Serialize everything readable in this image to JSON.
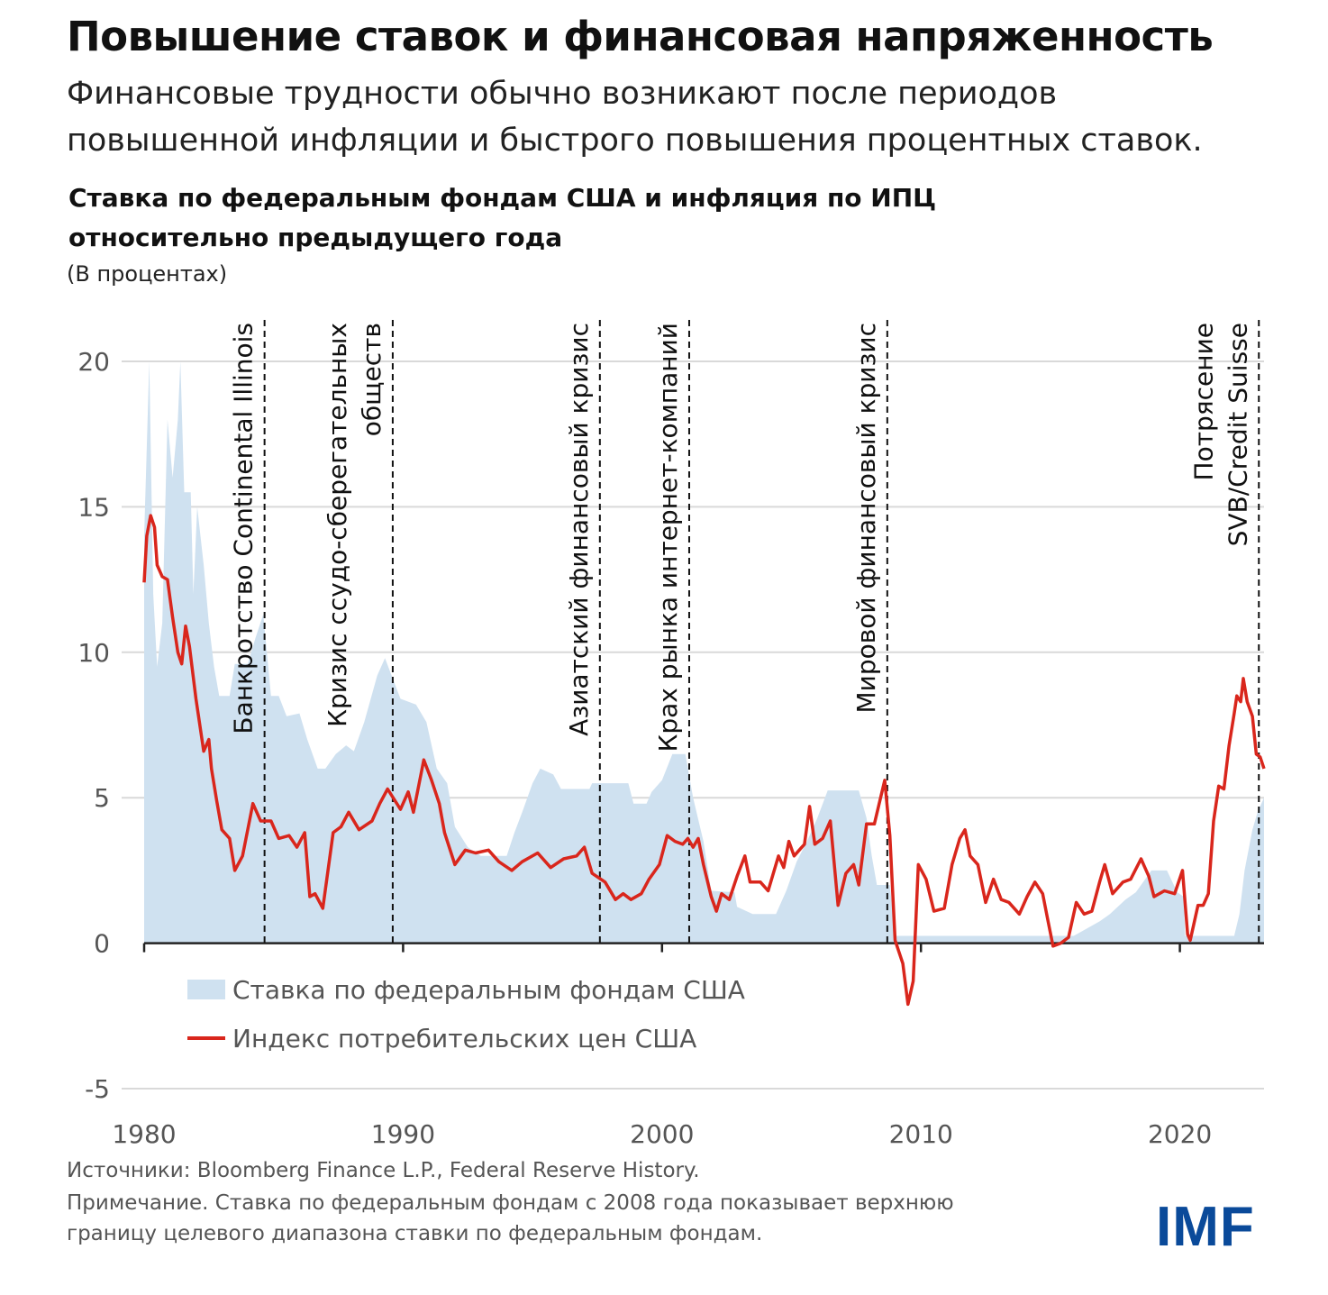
{
  "title": "Повышение ставок и финансовая напряженность",
  "subtitle_lines": [
    "Финансовые трудности обычно возникают после периодов",
    "повышенной инфляции и быстрого повышения процентных ставок."
  ],
  "chart_title_lines": [
    "Ставка по федеральным фондам США и инфляция по ИПЦ",
    "относительно предыдущего года"
  ],
  "units": "(В процентах)",
  "footer": {
    "sources": "Источники: Bloomberg Finance L.P., Federal Reserve History.",
    "note_lines": [
      "Примечание. Ставка по федеральным фондам с 2008 года показывает верхнюю",
      "границу целевого диапазона ставки по федеральным фондам."
    ]
  },
  "logo": "IMF",
  "chart_data": {
    "type": "area+line",
    "xlim": [
      1980,
      2023.25
    ],
    "ylim": [
      -5,
      20
    ],
    "x_ticks": [
      1980,
      1990,
      2000,
      2010,
      2020
    ],
    "y_ticks": [
      -5,
      0,
      5,
      10,
      15,
      20
    ],
    "grid": true,
    "legend_position": "bottom-left inside plot",
    "colors": {
      "fed_funds": "#cfe1f0",
      "cpi": "#d9261c",
      "events": "#111111"
    },
    "series": [
      {
        "name": "Ставка по федеральным фондам США",
        "kind": "area",
        "points": [
          [
            1980,
            14
          ],
          [
            1980.2,
            20
          ],
          [
            1980.35,
            12
          ],
          [
            1980.5,
            9.5
          ],
          [
            1980.7,
            11
          ],
          [
            1980.9,
            18
          ],
          [
            1981.1,
            16
          ],
          [
            1981.3,
            18
          ],
          [
            1981.4,
            20
          ],
          [
            1981.55,
            15.5
          ],
          [
            1981.8,
            15.5
          ],
          [
            1981.9,
            12
          ],
          [
            1982.05,
            15
          ],
          [
            1982.3,
            13
          ],
          [
            1982.5,
            11
          ],
          [
            1982.7,
            9.5
          ],
          [
            1982.9,
            8.5
          ],
          [
            1983.3,
            8.5
          ],
          [
            1983.5,
            9.6
          ],
          [
            1984,
            9.6
          ],
          [
            1984.3,
            10.5
          ],
          [
            1984.6,
            11.3
          ],
          [
            1984.9,
            8.5
          ],
          [
            1985.2,
            8.5
          ],
          [
            1985.5,
            7.8
          ],
          [
            1986,
            7.9
          ],
          [
            1986.3,
            7
          ],
          [
            1986.7,
            6
          ],
          [
            1987,
            6
          ],
          [
            1987.4,
            6.5
          ],
          [
            1987.8,
            6.8
          ],
          [
            1988.1,
            6.6
          ],
          [
            1988.5,
            7.6
          ],
          [
            1989,
            9.2
          ],
          [
            1989.3,
            9.8
          ],
          [
            1989.6,
            9.1
          ],
          [
            1989.9,
            8.4
          ],
          [
            1990.5,
            8.2
          ],
          [
            1990.9,
            7.6
          ],
          [
            1991.3,
            6
          ],
          [
            1991.7,
            5.5
          ],
          [
            1992,
            4
          ],
          [
            1992.5,
            3.3
          ],
          [
            1993,
            3
          ],
          [
            1994,
            3
          ],
          [
            1994.3,
            3.8
          ],
          [
            1994.6,
            4.5
          ],
          [
            1995,
            5.5
          ],
          [
            1995.3,
            6
          ],
          [
            1995.8,
            5.8
          ],
          [
            1996.1,
            5.3
          ],
          [
            1997.2,
            5.3
          ],
          [
            1997.3,
            5.5
          ],
          [
            1998.7,
            5.5
          ],
          [
            1998.9,
            4.8
          ],
          [
            1999.4,
            4.8
          ],
          [
            1999.6,
            5.2
          ],
          [
            2000,
            5.6
          ],
          [
            2000.4,
            6.5
          ],
          [
            2000.9,
            6.5
          ],
          [
            2001.2,
            5
          ],
          [
            2001.6,
            3.5
          ],
          [
            2001.9,
            1.8
          ],
          [
            2002.8,
            1.75
          ],
          [
            2002.9,
            1.25
          ],
          [
            2003.5,
            1
          ],
          [
            2004.4,
            1
          ],
          [
            2004.8,
            1.8
          ],
          [
            2005.2,
            2.8
          ],
          [
            2005.6,
            3.5
          ],
          [
            2006,
            4.3
          ],
          [
            2006.4,
            5.25
          ],
          [
            2007.6,
            5.25
          ],
          [
            2007.9,
            4.3
          ],
          [
            2008.1,
            3
          ],
          [
            2008.3,
            2
          ],
          [
            2008.8,
            2
          ],
          [
            2009,
            0.25
          ],
          [
            2015.9,
            0.25
          ],
          [
            2016.9,
            0.75
          ],
          [
            2017.3,
            1
          ],
          [
            2017.9,
            1.5
          ],
          [
            2018.3,
            1.75
          ],
          [
            2018.9,
            2.5
          ],
          [
            2019.5,
            2.5
          ],
          [
            2019.9,
            1.75
          ],
          [
            2020.15,
            1.6
          ],
          [
            2020.2,
            0.25
          ],
          [
            2022.1,
            0.25
          ],
          [
            2022.3,
            1
          ],
          [
            2022.5,
            2.5
          ],
          [
            2022.8,
            3.9
          ],
          [
            2023,
            4.5
          ],
          [
            2023.25,
            5
          ]
        ]
      },
      {
        "name": "Индекс потребительских цен США",
        "kind": "line",
        "points": [
          [
            1980,
            12.4
          ],
          [
            1980.1,
            14
          ],
          [
            1980.25,
            14.7
          ],
          [
            1980.4,
            14.3
          ],
          [
            1980.5,
            13
          ],
          [
            1980.7,
            12.6
          ],
          [
            1980.9,
            12.5
          ],
          [
            1981.1,
            11.2
          ],
          [
            1981.3,
            10
          ],
          [
            1981.45,
            9.6
          ],
          [
            1981.6,
            10.9
          ],
          [
            1981.75,
            10.2
          ],
          [
            1982,
            8.4
          ],
          [
            1982.3,
            6.6
          ],
          [
            1982.5,
            7
          ],
          [
            1982.6,
            6
          ],
          [
            1982.8,
            4.9
          ],
          [
            1983,
            3.9
          ],
          [
            1983.3,
            3.6
          ],
          [
            1983.5,
            2.5
          ],
          [
            1983.8,
            3
          ],
          [
            1984.2,
            4.8
          ],
          [
            1984.5,
            4.2
          ],
          [
            1984.9,
            4.2
          ],
          [
            1985.2,
            3.6
          ],
          [
            1985.6,
            3.7
          ],
          [
            1985.9,
            3.3
          ],
          [
            1986.2,
            3.8
          ],
          [
            1986.4,
            1.6
          ],
          [
            1986.6,
            1.7
          ],
          [
            1986.9,
            1.2
          ],
          [
            1987.3,
            3.8
          ],
          [
            1987.6,
            4
          ],
          [
            1987.9,
            4.5
          ],
          [
            1988.3,
            3.9
          ],
          [
            1988.8,
            4.2
          ],
          [
            1989.1,
            4.8
          ],
          [
            1989.4,
            5.3
          ],
          [
            1989.9,
            4.6
          ],
          [
            1990.2,
            5.2
          ],
          [
            1990.4,
            4.5
          ],
          [
            1990.8,
            6.3
          ],
          [
            1991.1,
            5.6
          ],
          [
            1991.4,
            4.8
          ],
          [
            1991.6,
            3.8
          ],
          [
            1992,
            2.7
          ],
          [
            1992.4,
            3.2
          ],
          [
            1992.8,
            3.1
          ],
          [
            1993.3,
            3.2
          ],
          [
            1993.7,
            2.8
          ],
          [
            1994.2,
            2.5
          ],
          [
            1994.6,
            2.8
          ],
          [
            1995.2,
            3.1
          ],
          [
            1995.7,
            2.6
          ],
          [
            1996.2,
            2.9
          ],
          [
            1996.7,
            3
          ],
          [
            1997,
            3.3
          ],
          [
            1997.3,
            2.4
          ],
          [
            1997.8,
            2.1
          ],
          [
            1998.2,
            1.5
          ],
          [
            1998.5,
            1.7
          ],
          [
            1998.8,
            1.5
          ],
          [
            1999.2,
            1.7
          ],
          [
            1999.5,
            2.2
          ],
          [
            1999.9,
            2.7
          ],
          [
            2000.2,
            3.7
          ],
          [
            2000.5,
            3.5
          ],
          [
            2000.8,
            3.4
          ],
          [
            2001,
            3.6
          ],
          [
            2001.2,
            3.3
          ],
          [
            2001.4,
            3.6
          ],
          [
            2001.6,
            2.7
          ],
          [
            2001.9,
            1.6
          ],
          [
            2002.1,
            1.1
          ],
          [
            2002.3,
            1.7
          ],
          [
            2002.6,
            1.5
          ],
          [
            2002.9,
            2.3
          ],
          [
            2003.2,
            3
          ],
          [
            2003.4,
            2.1
          ],
          [
            2003.8,
            2.1
          ],
          [
            2004.1,
            1.8
          ],
          [
            2004.5,
            3
          ],
          [
            2004.7,
            2.6
          ],
          [
            2004.9,
            3.5
          ],
          [
            2005.1,
            3
          ],
          [
            2005.5,
            3.4
          ],
          [
            2005.7,
            4.7
          ],
          [
            2005.9,
            3.4
          ],
          [
            2006.2,
            3.6
          ],
          [
            2006.5,
            4.2
          ],
          [
            2006.8,
            1.3
          ],
          [
            2007.1,
            2.4
          ],
          [
            2007.4,
            2.7
          ],
          [
            2007.6,
            2
          ],
          [
            2007.9,
            4.1
          ],
          [
            2008.2,
            4.1
          ],
          [
            2008.6,
            5.6
          ],
          [
            2008.8,
            3.7
          ],
          [
            2009,
            0.1
          ],
          [
            2009.3,
            -0.7
          ],
          [
            2009.5,
            -2.1
          ],
          [
            2009.7,
            -1.3
          ],
          [
            2009.9,
            2.7
          ],
          [
            2010.2,
            2.2
          ],
          [
            2010.5,
            1.1
          ],
          [
            2010.9,
            1.2
          ],
          [
            2011.2,
            2.7
          ],
          [
            2011.5,
            3.6
          ],
          [
            2011.7,
            3.9
          ],
          [
            2011.9,
            3
          ],
          [
            2012.2,
            2.7
          ],
          [
            2012.5,
            1.4
          ],
          [
            2012.8,
            2.2
          ],
          [
            2013.1,
            1.5
          ],
          [
            2013.4,
            1.4
          ],
          [
            2013.8,
            1
          ],
          [
            2014.1,
            1.6
          ],
          [
            2014.4,
            2.1
          ],
          [
            2014.7,
            1.7
          ],
          [
            2014.9,
            0.8
          ],
          [
            2015.1,
            -0.1
          ],
          [
            2015.4,
            0
          ],
          [
            2015.7,
            0.2
          ],
          [
            2016,
            1.4
          ],
          [
            2016.3,
            1
          ],
          [
            2016.6,
            1.1
          ],
          [
            2016.9,
            2.1
          ],
          [
            2017.1,
            2.7
          ],
          [
            2017.4,
            1.7
          ],
          [
            2017.8,
            2.1
          ],
          [
            2018.1,
            2.2
          ],
          [
            2018.5,
            2.9
          ],
          [
            2018.8,
            2.3
          ],
          [
            2019,
            1.6
          ],
          [
            2019.4,
            1.8
          ],
          [
            2019.8,
            1.7
          ],
          [
            2020.1,
            2.5
          ],
          [
            2020.3,
            0.3
          ],
          [
            2020.4,
            0.1
          ],
          [
            2020.7,
            1.3
          ],
          [
            2020.9,
            1.3
          ],
          [
            2021.1,
            1.7
          ],
          [
            2021.3,
            4.2
          ],
          [
            2021.5,
            5.4
          ],
          [
            2021.7,
            5.3
          ],
          [
            2021.9,
            6.8
          ],
          [
            2022.1,
            7.9
          ],
          [
            2022.2,
            8.5
          ],
          [
            2022.35,
            8.3
          ],
          [
            2022.45,
            9.1
          ],
          [
            2022.6,
            8.3
          ],
          [
            2022.8,
            7.8
          ],
          [
            2022.95,
            6.5
          ],
          [
            2023.1,
            6.4
          ],
          [
            2023.25,
            6
          ]
        ]
      }
    ],
    "events": [
      {
        "x": 1984.65,
        "label_lines": [
          "Банкротство Continental Illinois"
        ]
      },
      {
        "x": 1989.6,
        "label_lines": [
          "Кризис ссудо-сберегательных",
          "обществ"
        ]
      },
      {
        "x": 1997.6,
        "label_lines": [
          "Азиатский финансовый кризис"
        ]
      },
      {
        "x": 2001.05,
        "label_lines": [
          "Крах рынка интернет-компаний"
        ]
      },
      {
        "x": 2008.7,
        "label_lines": [
          "Мировой финансовый кризис"
        ]
      },
      {
        "x": 2023.05,
        "label_lines": [
          "Потрясение",
          "SVB/Credit Suisse"
        ]
      }
    ]
  }
}
